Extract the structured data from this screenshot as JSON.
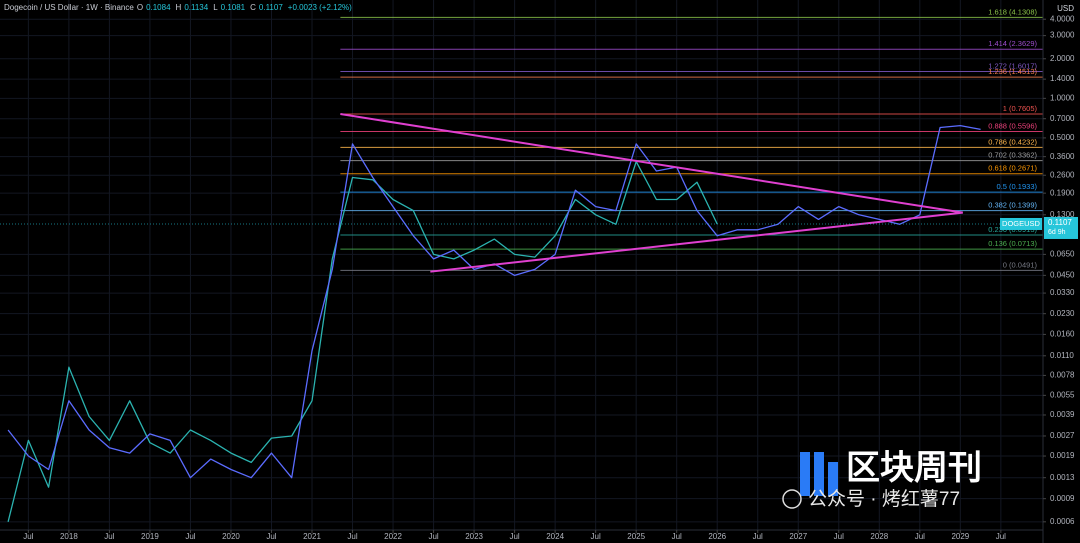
{
  "chart_data": {
    "type": "line",
    "header": {
      "symbol": "Dogecoin / US Dollar · 1W · Binance",
      "ohlc": [
        {
          "key": "O",
          "value": 0.1084
        },
        {
          "key": "H",
          "value": 0.1134
        },
        {
          "key": "L",
          "value": 0.1081
        },
        {
          "key": "C",
          "value": 0.1107
        }
      ],
      "change": "+0.0023 (+2.12%)"
    },
    "currency": "USD",
    "log_scale": true,
    "grid": true,
    "background": "#000000",
    "x": [
      2017.25,
      2017.5,
      2017.75,
      2018,
      2018.25,
      2018.5,
      2018.75,
      2019,
      2019.25,
      2019.5,
      2019.75,
      2020,
      2020.25,
      2020.5,
      2020.75,
      2021,
      2021.25,
      2021.5,
      2021.75,
      2022,
      2022.25,
      2022.5,
      2022.75,
      2023,
      2023.25,
      2023.5,
      2023.75,
      2024,
      2024.25,
      2024.5,
      2024.75,
      2025,
      2025.25,
      2025.5,
      2025.75,
      2026,
      2026.25,
      2026.5,
      2026.75,
      2027,
      2027.25,
      2027.5,
      2027.75,
      2028,
      2028.25,
      2028.5,
      2028.75,
      2029,
      2029.25
    ],
    "series": [
      {
        "name": "DOGEUSD",
        "color": "#2bb3b0",
        "values": [
          0.0006,
          0.0025,
          0.0011,
          0.009,
          0.0038,
          0.0025,
          0.005,
          0.0024,
          0.002,
          0.003,
          0.0025,
          0.002,
          0.0017,
          0.0026,
          0.0027,
          0.005,
          0.06,
          0.25,
          0.24,
          0.17,
          0.14,
          0.065,
          0.06,
          0.07,
          0.085,
          0.065,
          0.062,
          0.09,
          0.17,
          0.13,
          0.11,
          0.33,
          0.17,
          0.17,
          0.23,
          0.1107,
          null,
          null,
          null,
          null,
          null,
          null,
          null,
          null,
          null,
          null,
          null,
          null,
          null
        ]
      },
      {
        "color": "#5b6cff",
        "values": [
          0.003,
          0.0019,
          0.0015,
          0.005,
          0.003,
          0.0022,
          0.002,
          0.0028,
          0.0025,
          0.0013,
          0.0018,
          0.0015,
          0.0013,
          0.002,
          0.0013,
          0.012,
          0.05,
          0.45,
          0.25,
          0.15,
          0.09,
          0.06,
          0.07,
          0.05,
          0.055,
          0.045,
          0.05,
          0.065,
          0.2,
          0.15,
          0.14,
          0.45,
          0.28,
          0.3,
          0.14,
          0.09,
          0.1,
          0.1,
          0.11,
          0.15,
          0.12,
          0.15,
          0.13,
          0.12,
          0.11,
          0.13,
          0.6,
          0.62,
          0.58
        ]
      }
    ],
    "last_price": {
      "symbol": "DOGEUSD",
      "value": 0.1107,
      "countdown": "6d 9h"
    },
    "fib_x_start": 2021.35,
    "fib_levels": [
      {
        "label": "1.618 (4.1308)",
        "value": 4.1308,
        "color": "#8bc34a"
      },
      {
        "label": "1.414 (2.3629)",
        "value": 2.3629,
        "color": "#9c4dcc"
      },
      {
        "label": "1.272 (1.6017)",
        "value": 1.6017,
        "color": "#7e57c2"
      },
      {
        "label": "1.236 (1.4513)",
        "value": 1.4513,
        "color": "#f57c4f"
      },
      {
        "label": "1 (0.7605)",
        "value": 0.7605,
        "color": "#ef5350"
      },
      {
        "label": "0.888 (0.5596)",
        "value": 0.5596,
        "color": "#ec407a"
      },
      {
        "label": "0.786 (0.4232)",
        "value": 0.4232,
        "color": "#ffb74d"
      },
      {
        "label": "0.702 (0.3362)",
        "value": 0.3362,
        "color": "#9e9e9e"
      },
      {
        "label": "0.618 (0.2671)",
        "value": 0.2671,
        "color": "#ff9800"
      },
      {
        "label": "0.5 (0.1933)",
        "value": 0.1933,
        "color": "#2196f3"
      },
      {
        "label": "0.382 (0.1399)",
        "value": 0.1399,
        "color": "#64b5f6"
      },
      {
        "label": "0.236 (0.0913)",
        "value": 0.0913,
        "color": "#26a69a"
      },
      {
        "label": "0.136 (0.0713)",
        "value": 0.0713,
        "color": "#4caf50"
      },
      {
        "label": "0 (0.0491)",
        "value": 0.0491,
        "color": "#787b86"
      }
    ],
    "trendlines": [
      {
        "x": [
          2021.35,
          2029.03
        ],
        "y": [
          0.76,
          0.135
        ],
        "color": "#e040d0"
      },
      {
        "x": [
          2022.46,
          2029.03
        ],
        "y": [
          0.048,
          0.135
        ],
        "color": "#e040d0"
      }
    ],
    "xlim": [
      2017.15,
      2030.02
    ],
    "xticks": [
      {
        "value": 2017.5,
        "label": "Jul"
      },
      2018,
      {
        "value": 2018.5,
        "label": "Jul"
      },
      2019,
      {
        "value": 2019.5,
        "label": "Jul"
      },
      2020,
      {
        "value": 2020.5,
        "label": "Jul"
      },
      2021,
      {
        "value": 2021.5,
        "label": "Jul"
      },
      2022,
      {
        "value": 2022.5,
        "label": "Jul"
      },
      2023,
      {
        "value": 2023.5,
        "label": "Jul"
      },
      2024,
      {
        "value": 2024.5,
        "label": "Jul"
      },
      2025,
      {
        "value": 2025.5,
        "label": "Jul"
      },
      2026,
      {
        "value": 2026.5,
        "label": "Jul"
      },
      2027,
      {
        "value": 2027.5,
        "label": "Jul"
      },
      2028,
      {
        "value": 2028.5,
        "label": "Jul"
      },
      2029,
      {
        "value": 2029.5,
        "label": "Jul"
      }
    ],
    "ylim": [
      0.00052,
      5.6
    ],
    "yticks": [
      {
        "value": 4,
        "label": "4.0000"
      },
      {
        "value": 3,
        "label": "3.0000"
      },
      {
        "value": 2,
        "label": "2.0000"
      },
      {
        "value": 1.4,
        "label": "1.4000"
      },
      {
        "value": 1,
        "label": "1.0000"
      },
      {
        "value": 0.7,
        "label": "0.7000"
      },
      {
        "value": 0.5,
        "label": "0.5000"
      },
      {
        "value": 0.36,
        "label": "0.3600"
      },
      {
        "value": 0.26,
        "label": "0.2600"
      },
      {
        "value": 0.19,
        "label": "0.1900"
      },
      {
        "value": 0.13,
        "label": "0.1300"
      },
      {
        "value": 0.065,
        "label": "0.0650"
      },
      {
        "value": 0.045,
        "label": "0.0450"
      },
      {
        "value": 0.033,
        "label": "0.0330"
      },
      {
        "value": 0.023,
        "label": "0.0230"
      },
      {
        "value": 0.016,
        "label": "0.0160"
      },
      {
        "value": 0.011,
        "label": "0.0110"
      },
      {
        "value": 0.0078,
        "label": "0.0078"
      },
      {
        "value": 0.0055,
        "label": "0.0055"
      },
      {
        "value": 0.0039,
        "label": "0.0039"
      },
      {
        "value": 0.0027,
        "label": "0.0027"
      },
      {
        "value": 0.0019,
        "label": "0.0019"
      },
      {
        "value": 0.0013,
        "label": "0.0013"
      },
      {
        "value": 0.0009,
        "label": "0.0009"
      },
      {
        "value": 0.0006,
        "label": "0.0006"
      }
    ],
    "watermark": {
      "brand": "区块周刊",
      "account": "公众号 · 烤红薯77"
    }
  }
}
